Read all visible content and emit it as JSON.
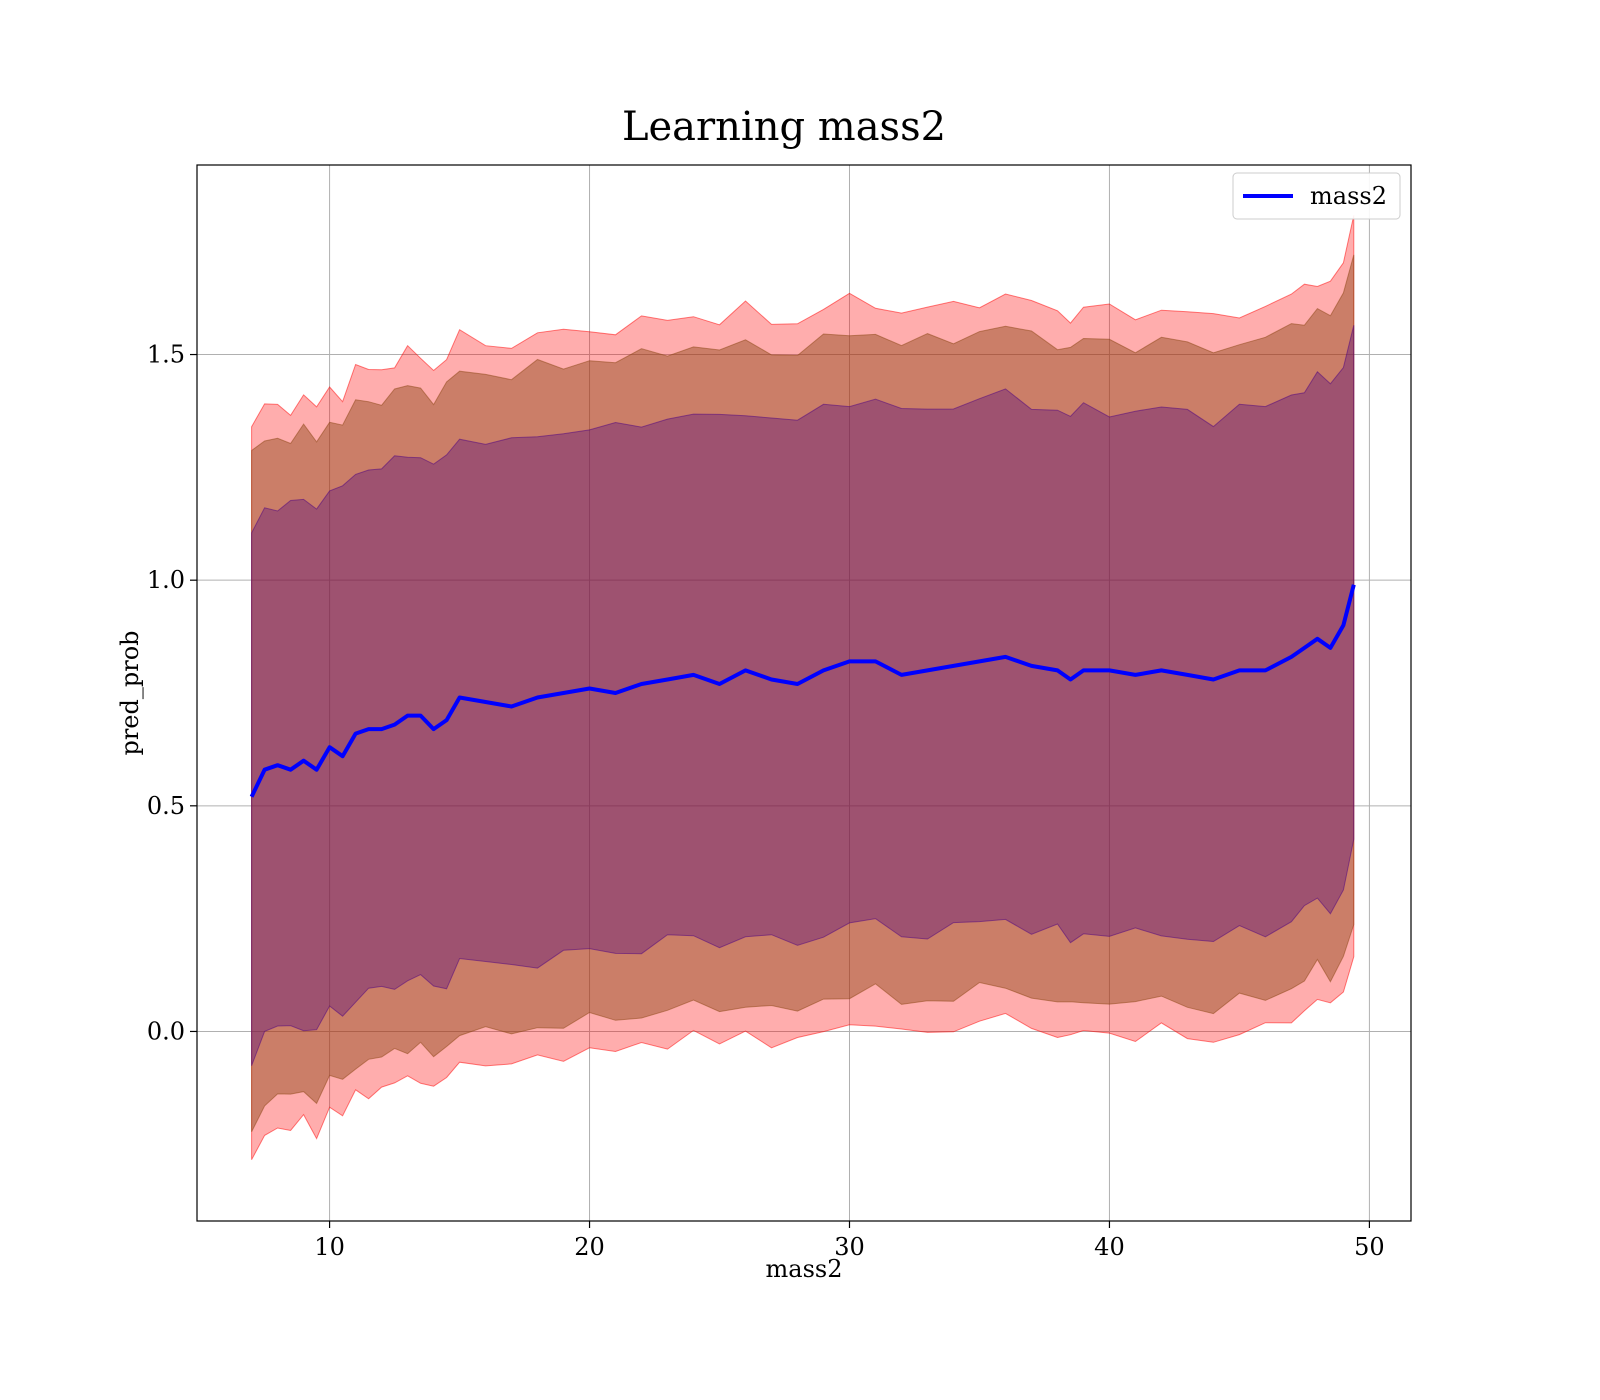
{
  "chart_data": {
    "type": "line",
    "title": "Learning mass2",
    "xlabel": "mass2",
    "ylabel": "pred_prob",
    "xlim": [
      4.9,
      51.6
    ],
    "ylim": [
      -0.42,
      1.92
    ],
    "xticks": [
      10,
      20,
      30,
      40,
      50
    ],
    "xtick_labels": [
      "10",
      "20",
      "30",
      "40",
      "50"
    ],
    "yticks": [
      0.0,
      0.5,
      1.0,
      1.5
    ],
    "ytick_labels": [
      "0.0",
      "0.5",
      "1.0",
      "1.5"
    ],
    "grid": true,
    "legend": {
      "placement": "upper right",
      "entries": [
        "mass2"
      ]
    },
    "colors": {
      "line": "#0000ff",
      "band_outer": "#ff0000",
      "band_middle": "#8b4513",
      "band_inner": "#4b0082"
    },
    "series": [
      {
        "name": "mass2",
        "x": [
          7.0,
          7.5,
          8.0,
          8.5,
          9.0,
          9.5,
          10.0,
          10.5,
          11.0,
          11.5,
          12.0,
          12.5,
          13.0,
          13.5,
          14.0,
          14.5,
          15.0,
          16.0,
          17.0,
          18.0,
          19.0,
          20.0,
          21.0,
          22.0,
          23.0,
          24.0,
          25.0,
          26.0,
          27.0,
          28.0,
          29.0,
          30.0,
          31.0,
          32.0,
          33.0,
          34.0,
          35.0,
          36.0,
          37.0,
          38.0,
          38.5,
          39.0,
          40.0,
          41.0,
          42.0,
          43.0,
          44.0,
          45.0,
          46.0,
          47.0,
          47.5,
          48.0,
          48.5,
          49.0,
          49.4
        ],
        "y": [
          0.52,
          0.58,
          0.59,
          0.58,
          0.6,
          0.58,
          0.63,
          0.61,
          0.66,
          0.67,
          0.67,
          0.68,
          0.7,
          0.7,
          0.67,
          0.69,
          0.74,
          0.73,
          0.72,
          0.74,
          0.75,
          0.76,
          0.75,
          0.77,
          0.78,
          0.79,
          0.77,
          0.8,
          0.78,
          0.77,
          0.8,
          0.82,
          0.82,
          0.79,
          0.8,
          0.81,
          0.82,
          0.83,
          0.81,
          0.8,
          0.78,
          0.8,
          0.8,
          0.79,
          0.8,
          0.79,
          0.78,
          0.8,
          0.8,
          0.83,
          0.85,
          0.87,
          0.85,
          0.9,
          0.99
        ],
        "bands": [
          {
            "name": "outer",
            "offset": [
              0.82,
              0.8,
              0.8,
              0.8,
              0.8,
              0.8,
              0.8,
              0.8,
              0.8,
              0.8,
              0.8,
              0.8,
              0.8,
              0.8,
              0.8,
              0.8,
              0.8,
              0.8,
              0.8,
              0.8,
              0.8,
              0.8,
              0.8,
              0.8,
              0.8,
              0.8,
              0.8,
              0.8,
              0.8,
              0.8,
              0.8,
              0.8,
              0.8,
              0.8,
              0.8,
              0.8,
              0.8,
              0.8,
              0.8,
              0.8,
              0.8,
              0.8,
              0.8,
              0.8,
              0.8,
              0.8,
              0.8,
              0.8,
              0.8,
              0.8,
              0.8,
              0.8,
              0.8,
              0.8,
              0.82
            ]
          },
          {
            "name": "middle",
            "offset": [
              0.75,
              0.73,
              0.73,
              0.73,
              0.73,
              0.73,
              0.73,
              0.73,
              0.73,
              0.73,
              0.73,
              0.73,
              0.73,
              0.73,
              0.73,
              0.73,
              0.73,
              0.73,
              0.73,
              0.73,
              0.73,
              0.73,
              0.73,
              0.73,
              0.73,
              0.73,
              0.73,
              0.73,
              0.73,
              0.73,
              0.73,
              0.73,
              0.73,
              0.73,
              0.73,
              0.73,
              0.73,
              0.73,
              0.73,
              0.73,
              0.73,
              0.73,
              0.73,
              0.73,
              0.73,
              0.73,
              0.73,
              0.73,
              0.73,
              0.73,
              0.73,
              0.73,
              0.73,
              0.73,
              0.75
            ]
          },
          {
            "name": "inner",
            "offset": [
              0.58,
              0.58,
              0.58,
              0.58,
              0.58,
              0.58,
              0.58,
              0.58,
              0.58,
              0.58,
              0.58,
              0.58,
              0.58,
              0.58,
              0.58,
              0.58,
              0.58,
              0.58,
              0.58,
              0.58,
              0.58,
              0.58,
              0.58,
              0.58,
              0.58,
              0.58,
              0.58,
              0.58,
              0.58,
              0.58,
              0.58,
              0.58,
              0.58,
              0.58,
              0.58,
              0.58,
              0.58,
              0.58,
              0.58,
              0.58,
              0.58,
              0.58,
              0.58,
              0.58,
              0.58,
              0.58,
              0.58,
              0.58,
              0.58,
              0.58,
              0.58,
              0.58,
              0.58,
              0.58,
              0.58
            ]
          }
        ]
      }
    ]
  }
}
